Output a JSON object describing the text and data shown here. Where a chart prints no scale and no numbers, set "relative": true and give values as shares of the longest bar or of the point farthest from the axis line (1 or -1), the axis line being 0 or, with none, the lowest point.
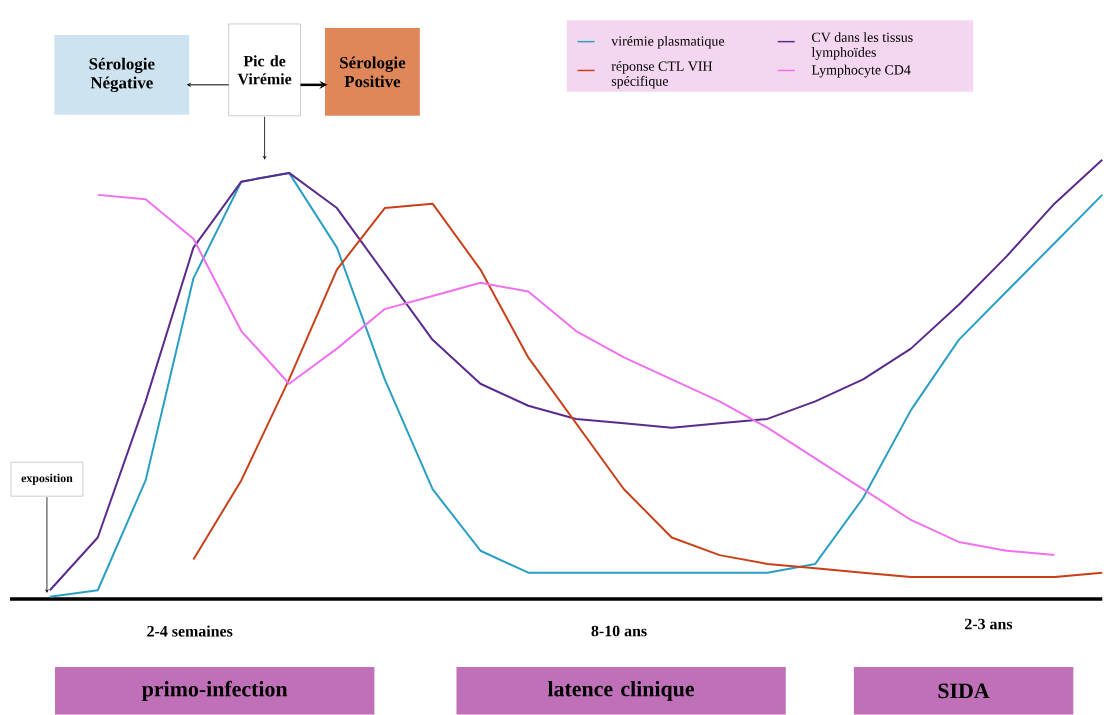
{
  "chart_data": {
    "type": "line",
    "relative": true,
    "legend": "top right",
    "marker": "none",
    "line_style": "solid",
    "categories": [
      null,
      null,
      null,
      null,
      null,
      null,
      null,
      null,
      null,
      null,
      null,
      null,
      null,
      null,
      null,
      null,
      null,
      null,
      null,
      null,
      null,
      null,
      null
    ],
    "series": [
      {
        "name": "virémie plasmatique",
        "color": "#2a9fc4",
        "values": [
          0.005,
          0.02,
          0.27,
          0.73,
          0.95,
          0.97,
          0.8,
          0.5,
          0.25,
          0.11,
          0.06,
          0.06,
          0.06,
          0.06,
          0.06,
          0.06,
          0.08,
          0.23,
          0.43,
          0.59,
          0.7,
          0.81,
          0.92
        ]
      },
      {
        "name": "CV dans les tissus lymphoïdes",
        "color": "#5a2a8c",
        "values": [
          0.02,
          0.14,
          0.45,
          0.8,
          0.95,
          0.97,
          0.89,
          0.74,
          0.59,
          0.49,
          0.44,
          0.41,
          0.4,
          0.39,
          0.4,
          0.41,
          0.45,
          0.5,
          0.57,
          0.67,
          0.78,
          0.9,
          1.0
        ]
      },
      {
        "name": "réponse CTL VIH spécifique",
        "color": "#c8401a",
        "values": [
          null,
          null,
          null,
          0.09,
          0.27,
          0.5,
          0.75,
          0.89,
          0.9,
          0.75,
          0.55,
          0.4,
          0.25,
          0.14,
          0.1,
          0.08,
          0.07,
          0.06,
          0.05,
          0.05,
          0.05,
          0.05,
          0.06
        ]
      },
      {
        "name": "Lymphocyte CD4",
        "color": "#f070f0",
        "values": [
          null,
          0.92,
          0.91,
          0.82,
          0.61,
          0.49,
          0.57,
          0.66,
          0.69,
          0.72,
          0.7,
          0.61,
          0.55,
          0.5,
          0.45,
          0.39,
          0.32,
          0.25,
          0.18,
          0.13,
          0.11,
          0.1,
          null
        ]
      }
    ],
    "annotations": [
      "exposition",
      "Sérologie Négative",
      "Pic de Virémie",
      "Sérologie Positive",
      "2-4 semaines",
      "8-10 ans",
      "2-3 ans",
      "primo-infection",
      "latence clinique",
      "SIDA"
    ]
  }
}
